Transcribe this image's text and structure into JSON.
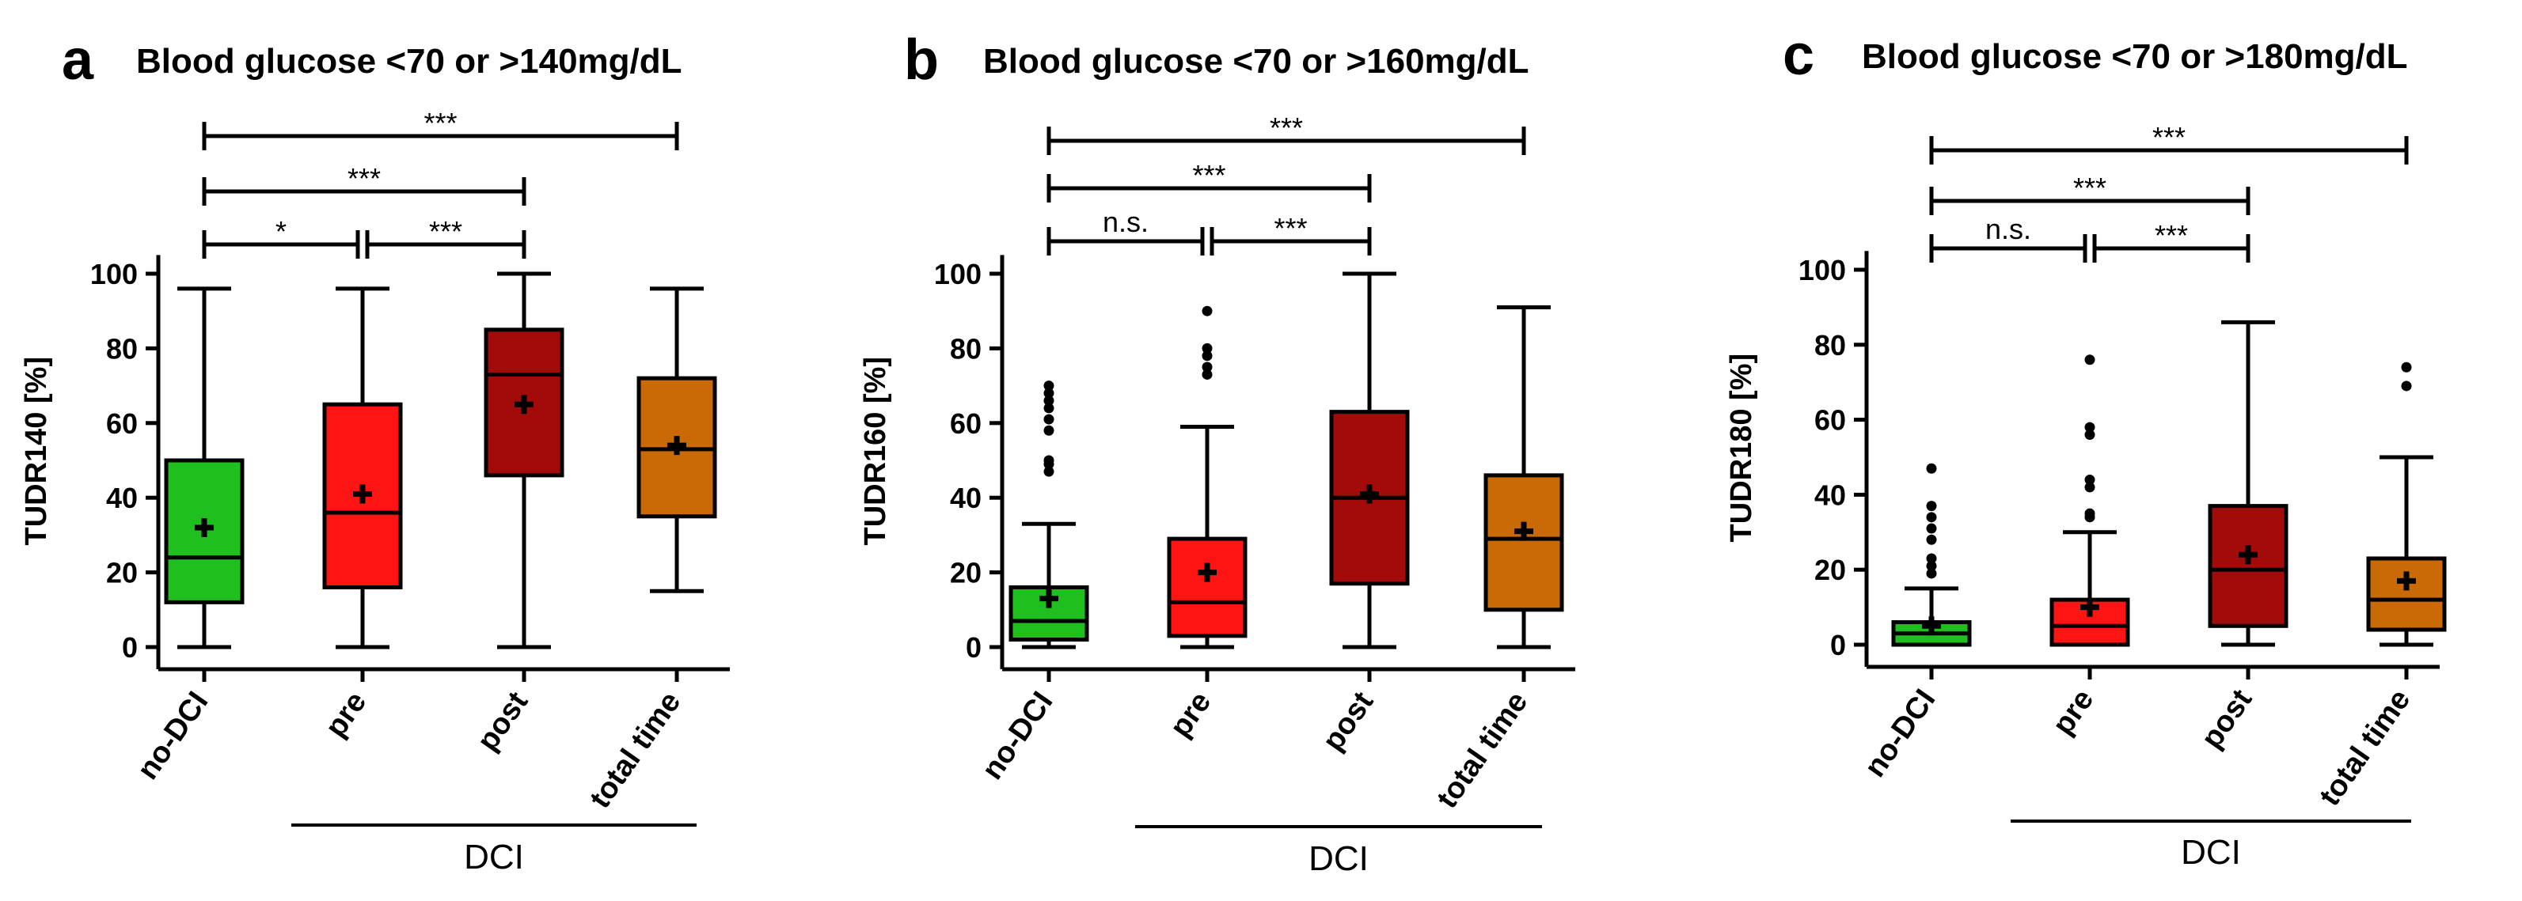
{
  "figure": {
    "description_free": true
  },
  "chart_data": [
    {
      "type": "box",
      "panel": "a",
      "title": "Blood glucose <70 or >140mg/dL",
      "ylabel": "TUDR140 [%]",
      "xlabel": "",
      "ylim": [
        0,
        105
      ],
      "yticks": [
        0,
        20,
        40,
        60,
        80,
        100
      ],
      "categories": [
        "no-DCI",
        "pre",
        "post",
        "total time"
      ],
      "group_label": "DCI",
      "group_span": [
        "pre",
        "total time"
      ],
      "boxes": [
        {
          "category": "no-DCI",
          "color": "#1fbf1f",
          "whisker_low": 0,
          "q1": 12,
          "median": 24,
          "q3": 50,
          "whisker_high": 96,
          "mean": 32,
          "outliers": []
        },
        {
          "category": "pre",
          "color": "#ff1414",
          "whisker_low": 0,
          "q1": 16,
          "median": 36,
          "q3": 65,
          "whisker_high": 96,
          "mean": 41,
          "outliers": []
        },
        {
          "category": "post",
          "color": "#a30b0b",
          "whisker_low": 0,
          "q1": 46,
          "median": 73,
          "q3": 85,
          "whisker_high": 100,
          "mean": 65,
          "outliers": []
        },
        {
          "category": "total time",
          "color": "#c96a06",
          "whisker_low": 15,
          "q1": 35,
          "median": 53,
          "q3": 72,
          "whisker_high": 96,
          "mean": 54,
          "outliers": []
        }
      ],
      "significance": [
        {
          "from": "no-DCI",
          "to": "pre",
          "label": "*",
          "level": 1
        },
        {
          "from": "pre",
          "to": "post",
          "label": "***",
          "level": 1
        },
        {
          "from": "no-DCI",
          "to": "post",
          "label": "***",
          "level": 2
        },
        {
          "from": "no-DCI",
          "to": "total time",
          "label": "***",
          "level": 3
        }
      ]
    },
    {
      "type": "box",
      "panel": "b",
      "title": "Blood glucose <70 or >160mg/dL",
      "ylabel": "TUDR160 [%]",
      "xlabel": "",
      "ylim": [
        0,
        105
      ],
      "yticks": [
        0,
        20,
        40,
        60,
        80,
        100
      ],
      "categories": [
        "no-DCI",
        "pre",
        "post",
        "total time"
      ],
      "group_label": "DCI",
      "group_span": [
        "pre",
        "total time"
      ],
      "boxes": [
        {
          "category": "no-DCI",
          "color": "#1fbf1f",
          "whisker_low": 0,
          "q1": 2,
          "median": 7,
          "q3": 16,
          "whisker_high": 33,
          "mean": 13,
          "outliers": [
            47,
            49,
            50,
            58,
            61,
            64,
            66,
            68,
            70
          ]
        },
        {
          "category": "pre",
          "color": "#ff1414",
          "whisker_low": 0,
          "q1": 3,
          "median": 12,
          "q3": 29,
          "whisker_high": 59,
          "mean": 20,
          "outliers": [
            73,
            75,
            78,
            80,
            90
          ]
        },
        {
          "category": "post",
          "color": "#a30b0b",
          "whisker_low": 0,
          "q1": 17,
          "median": 40,
          "q3": 63,
          "whisker_high": 100,
          "mean": 41,
          "outliers": []
        },
        {
          "category": "total time",
          "color": "#c96a06",
          "whisker_low": 0,
          "q1": 10,
          "median": 29,
          "q3": 46,
          "whisker_high": 91,
          "mean": 31,
          "outliers": []
        }
      ],
      "significance": [
        {
          "from": "no-DCI",
          "to": "pre",
          "label": "n.s.",
          "level": 1
        },
        {
          "from": "pre",
          "to": "post",
          "label": "***",
          "level": 1
        },
        {
          "from": "no-DCI",
          "to": "post",
          "label": "***",
          "level": 2
        },
        {
          "from": "no-DCI",
          "to": "total time",
          "label": "***",
          "level": 3
        }
      ]
    },
    {
      "type": "box",
      "panel": "c",
      "title": "Blood glucose <70 or >180mg/dL",
      "ylabel": "TUDR180 [%]",
      "xlabel": "",
      "ylim": [
        0,
        105
      ],
      "yticks": [
        0,
        20,
        40,
        60,
        80,
        100
      ],
      "categories": [
        "no-DCI",
        "pre",
        "post",
        "total time"
      ],
      "group_label": "DCI",
      "group_span": [
        "pre",
        "total time"
      ],
      "boxes": [
        {
          "category": "no-DCI",
          "color": "#1fbf1f",
          "whisker_low": 0,
          "q1": 0,
          "median": 3,
          "q3": 6,
          "whisker_high": 15,
          "mean": 5,
          "outliers": [
            19,
            21,
            23,
            28,
            31,
            34,
            37,
            47
          ]
        },
        {
          "category": "pre",
          "color": "#ff1414",
          "whisker_low": 0,
          "q1": 0,
          "median": 5,
          "q3": 12,
          "whisker_high": 30,
          "mean": 10,
          "outliers": [
            34,
            35,
            42,
            44,
            56,
            58,
            76
          ]
        },
        {
          "category": "post",
          "color": "#a30b0b",
          "whisker_low": 0,
          "q1": 5,
          "median": 20,
          "q3": 37,
          "whisker_high": 86,
          "mean": 24,
          "outliers": []
        },
        {
          "category": "total time",
          "color": "#c96a06",
          "whisker_low": 0,
          "q1": 4,
          "median": 12,
          "q3": 23,
          "whisker_high": 50,
          "mean": 17,
          "outliers": [
            69,
            74
          ]
        }
      ],
      "significance": [
        {
          "from": "no-DCI",
          "to": "pre",
          "label": "n.s.",
          "level": 1
        },
        {
          "from": "pre",
          "to": "post",
          "label": "***",
          "level": 1
        },
        {
          "from": "no-DCI",
          "to": "post",
          "label": "***",
          "level": 2
        },
        {
          "from": "no-DCI",
          "to": "total time",
          "label": "***",
          "level": 3
        }
      ]
    }
  ]
}
